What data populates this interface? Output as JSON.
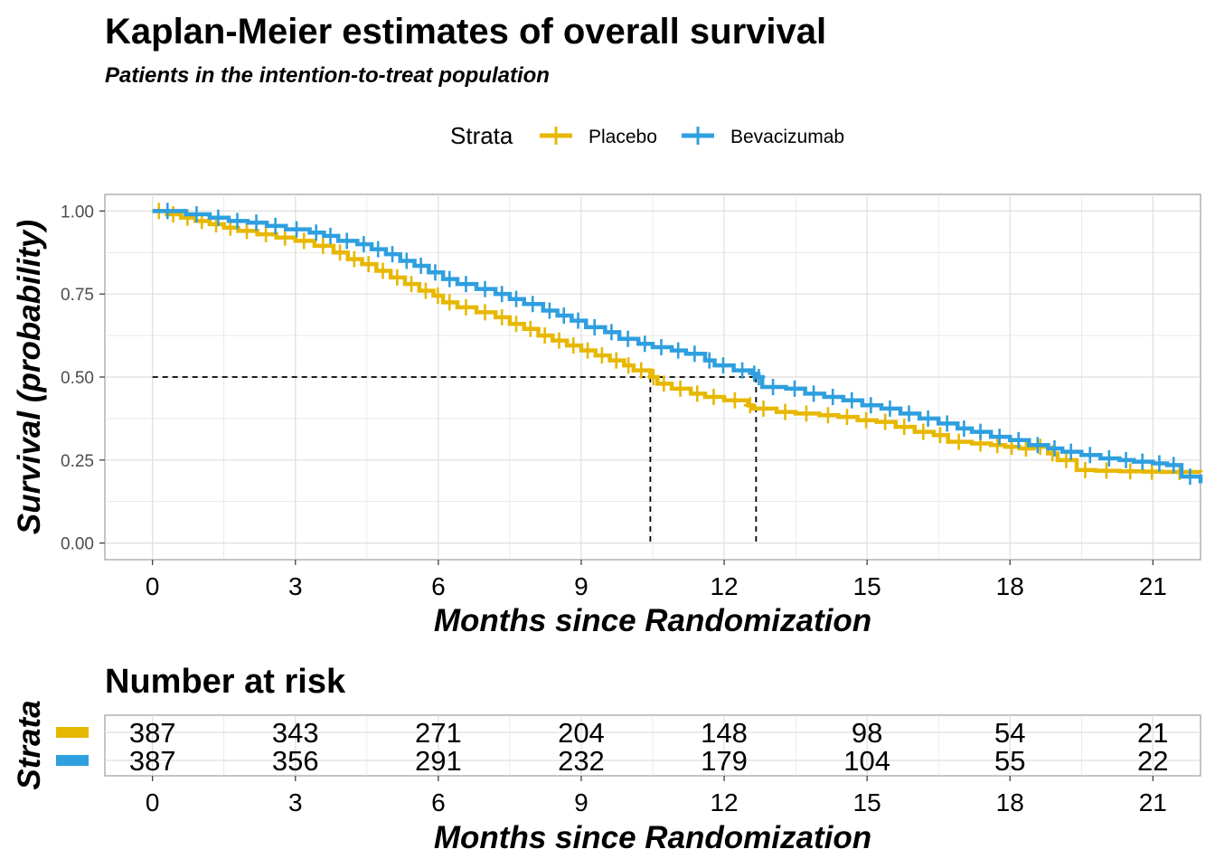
{
  "title": "Kaplan-Meier estimates of overall survival",
  "subtitle": "Patients in the intention-to-treat population",
  "legend": {
    "title": "Strata",
    "placement": "top-center"
  },
  "colors": {
    "placebo": "#E7B800",
    "bevacizumab": "#2E9FDF",
    "grid": "#dedede",
    "panel_border": "#b0b0b0"
  },
  "risk_table": {
    "title": "Number at risk",
    "ylabel": "Strata",
    "xlabel": "Months since Randomization",
    "times": [
      "0",
      "3",
      "6",
      "9",
      "12",
      "15",
      "18",
      "21"
    ],
    "rows": [
      {
        "strata": "Placebo",
        "color": "#E7B800",
        "counts": [
          "387",
          "343",
          "271",
          "204",
          "148",
          "98",
          "54",
          "21"
        ]
      },
      {
        "strata": "Bevacizumab",
        "color": "#2E9FDF",
        "counts": [
          "387",
          "356",
          "291",
          "232",
          "179",
          "104",
          "55",
          "22"
        ]
      }
    ]
  },
  "chart_data": {
    "type": "line",
    "step": true,
    "title": "Kaplan-Meier estimates of overall survival",
    "subtitle": "Patients in the intention-to-treat population",
    "xlabel": "Months since Randomization",
    "ylabel": "Survival (probability)",
    "xlim": [
      -1,
      22
    ],
    "ylim": [
      -0.05,
      1.05
    ],
    "xticks": [
      "0",
      "3",
      "6",
      "9",
      "12",
      "15",
      "18",
      "21"
    ],
    "yticks": [
      "0.00",
      "0.25",
      "0.50",
      "0.75",
      "1.00"
    ],
    "grid": true,
    "legend_position": "top",
    "median_lines": [
      10.45,
      12.67
    ],
    "series": [
      {
        "name": "Placebo",
        "color": "#E7B800",
        "points": [
          [
            0,
            1.0
          ],
          [
            0.3,
            0.99
          ],
          [
            0.6,
            0.98
          ],
          [
            0.9,
            0.97
          ],
          [
            1.2,
            0.96
          ],
          [
            1.5,
            0.95
          ],
          [
            1.8,
            0.94
          ],
          [
            2.2,
            0.93
          ],
          [
            2.6,
            0.92
          ],
          [
            3.0,
            0.91
          ],
          [
            3.4,
            0.895
          ],
          [
            3.8,
            0.875
          ],
          [
            4.1,
            0.855
          ],
          [
            4.4,
            0.84
          ],
          [
            4.7,
            0.82
          ],
          [
            5.0,
            0.8
          ],
          [
            5.3,
            0.78
          ],
          [
            5.6,
            0.76
          ],
          [
            5.9,
            0.745
          ],
          [
            6.1,
            0.725
          ],
          [
            6.4,
            0.71
          ],
          [
            6.8,
            0.695
          ],
          [
            7.2,
            0.68
          ],
          [
            7.5,
            0.66
          ],
          [
            7.8,
            0.645
          ],
          [
            8.1,
            0.625
          ],
          [
            8.4,
            0.61
          ],
          [
            8.7,
            0.595
          ],
          [
            9.0,
            0.58
          ],
          [
            9.3,
            0.565
          ],
          [
            9.6,
            0.55
          ],
          [
            9.9,
            0.535
          ],
          [
            10.1,
            0.52
          ],
          [
            10.45,
            0.5
          ],
          [
            10.6,
            0.48
          ],
          [
            10.9,
            0.465
          ],
          [
            11.3,
            0.45
          ],
          [
            11.6,
            0.44
          ],
          [
            12.0,
            0.43
          ],
          [
            12.5,
            0.415
          ],
          [
            12.6,
            0.405
          ],
          [
            13.1,
            0.395
          ],
          [
            13.5,
            0.39
          ],
          [
            14.0,
            0.385
          ],
          [
            14.4,
            0.38
          ],
          [
            14.8,
            0.37
          ],
          [
            15.2,
            0.365
          ],
          [
            15.6,
            0.35
          ],
          [
            16.0,
            0.335
          ],
          [
            16.4,
            0.325
          ],
          [
            16.7,
            0.305
          ],
          [
            17.2,
            0.3
          ],
          [
            17.6,
            0.295
          ],
          [
            17.9,
            0.29
          ],
          [
            18.2,
            0.285
          ],
          [
            18.5,
            0.29
          ],
          [
            18.8,
            0.27
          ],
          [
            19.0,
            0.25
          ],
          [
            19.4,
            0.22
          ],
          [
            19.8,
            0.218
          ],
          [
            20.3,
            0.216
          ],
          [
            20.8,
            0.215
          ],
          [
            21.2,
            0.214
          ],
          [
            22.0,
            0.213
          ]
        ]
      },
      {
        "name": "Bevacizumab",
        "color": "#2E9FDF",
        "points": [
          [
            0,
            1.0
          ],
          [
            0.7,
            0.99
          ],
          [
            1.2,
            0.98
          ],
          [
            1.6,
            0.97
          ],
          [
            2.0,
            0.965
          ],
          [
            2.4,
            0.955
          ],
          [
            2.8,
            0.945
          ],
          [
            3.3,
            0.935
          ],
          [
            3.6,
            0.925
          ],
          [
            3.9,
            0.91
          ],
          [
            4.3,
            0.9
          ],
          [
            4.6,
            0.885
          ],
          [
            4.9,
            0.87
          ],
          [
            5.2,
            0.85
          ],
          [
            5.5,
            0.835
          ],
          [
            5.8,
            0.815
          ],
          [
            6.1,
            0.795
          ],
          [
            6.4,
            0.78
          ],
          [
            6.8,
            0.765
          ],
          [
            7.2,
            0.75
          ],
          [
            7.5,
            0.735
          ],
          [
            7.8,
            0.72
          ],
          [
            8.2,
            0.7
          ],
          [
            8.5,
            0.685
          ],
          [
            8.8,
            0.67
          ],
          [
            9.1,
            0.65
          ],
          [
            9.5,
            0.635
          ],
          [
            9.8,
            0.615
          ],
          [
            10.2,
            0.6
          ],
          [
            10.5,
            0.59
          ],
          [
            10.9,
            0.58
          ],
          [
            11.2,
            0.57
          ],
          [
            11.6,
            0.55
          ],
          [
            11.8,
            0.535
          ],
          [
            12.2,
            0.52
          ],
          [
            12.6,
            0.51
          ],
          [
            12.67,
            0.5
          ],
          [
            12.8,
            0.47
          ],
          [
            13.3,
            0.465
          ],
          [
            13.7,
            0.45
          ],
          [
            14.1,
            0.44
          ],
          [
            14.5,
            0.43
          ],
          [
            14.9,
            0.415
          ],
          [
            15.3,
            0.405
          ],
          [
            15.7,
            0.39
          ],
          [
            16.1,
            0.375
          ],
          [
            16.5,
            0.36
          ],
          [
            16.9,
            0.345
          ],
          [
            17.2,
            0.335
          ],
          [
            17.6,
            0.32
          ],
          [
            18.0,
            0.31
          ],
          [
            18.4,
            0.295
          ],
          [
            18.8,
            0.285
          ],
          [
            19.1,
            0.275
          ],
          [
            19.5,
            0.265
          ],
          [
            19.9,
            0.255
          ],
          [
            20.3,
            0.25
          ],
          [
            20.6,
            0.245
          ],
          [
            21.0,
            0.24
          ],
          [
            21.3,
            0.235
          ],
          [
            21.6,
            0.2
          ],
          [
            22.0,
            0.18
          ]
        ]
      }
    ]
  }
}
